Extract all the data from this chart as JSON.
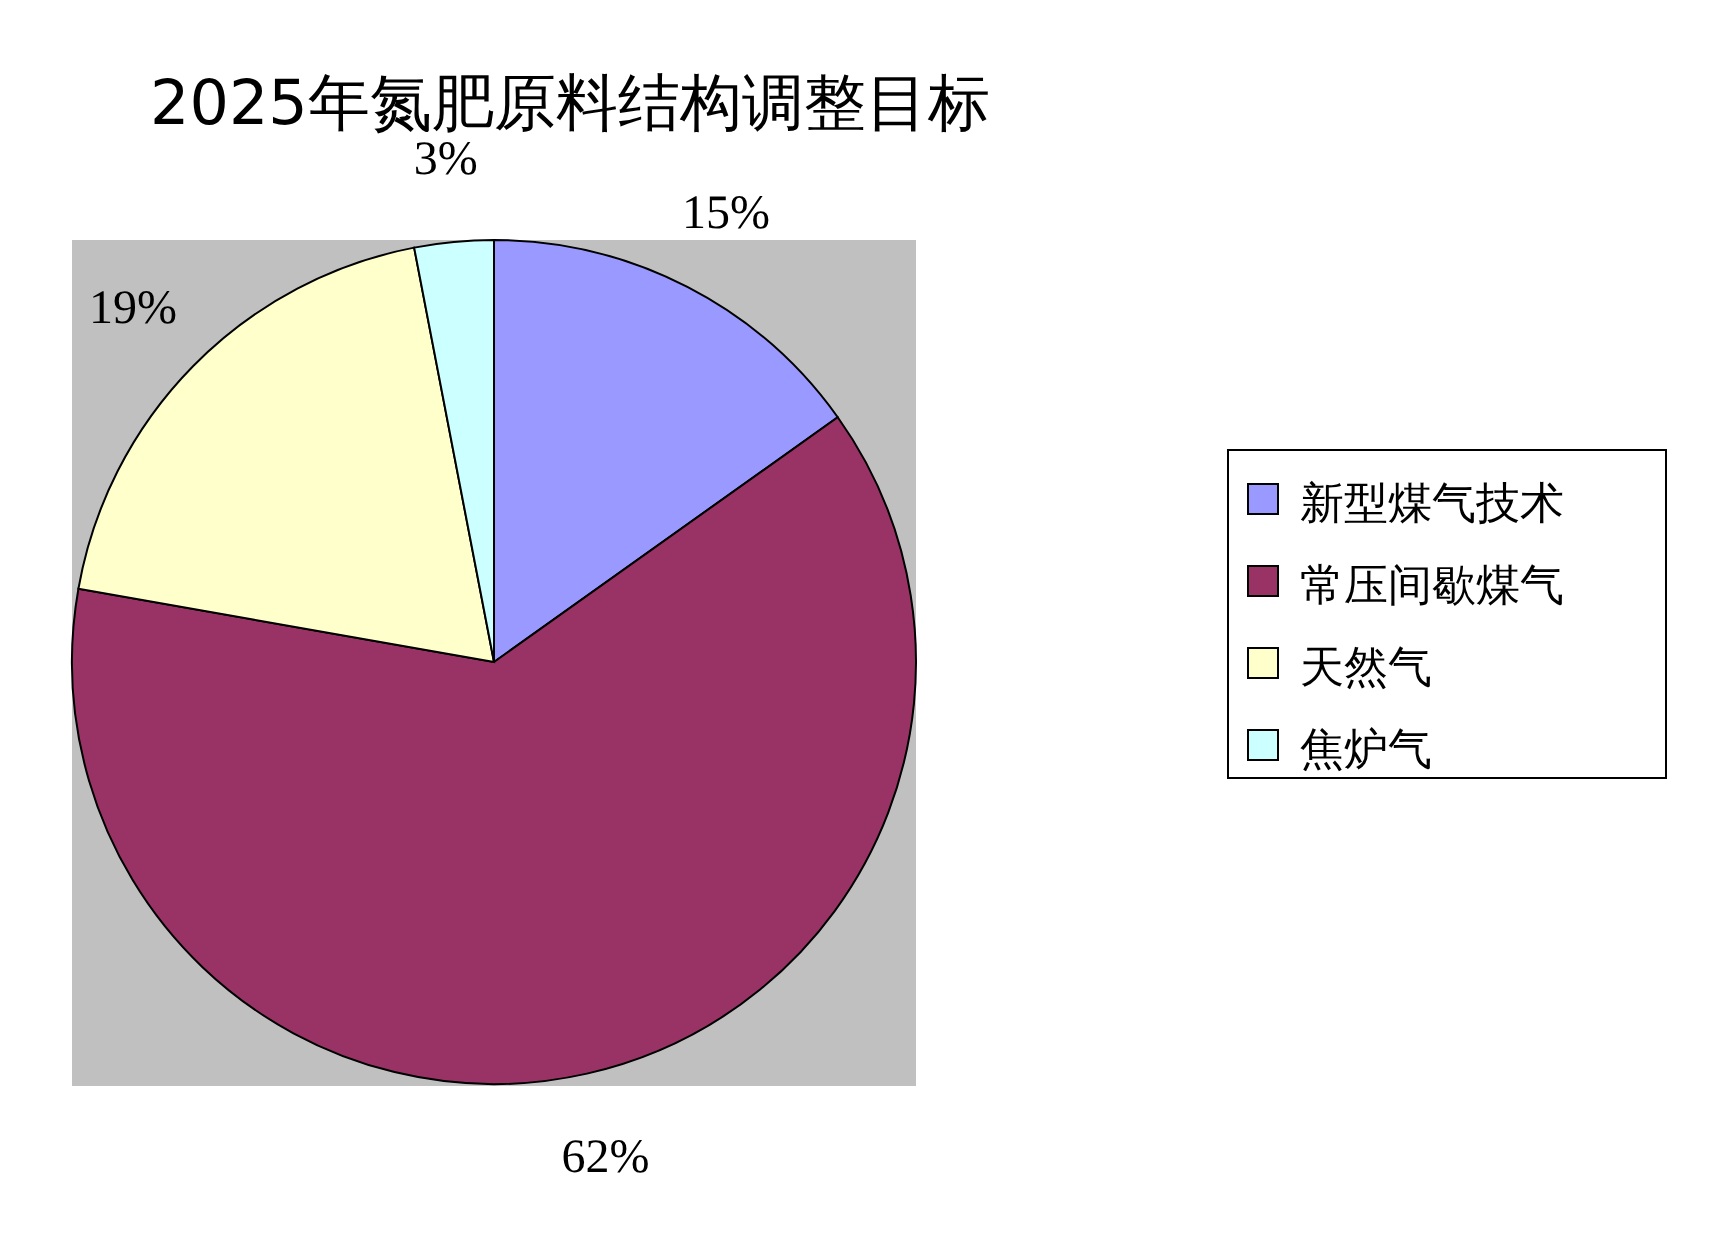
{
  "chart_data": {
    "type": "pie",
    "title": "2025年氮肥原料结构调整目标",
    "categories": [
      "新型煤气技术",
      "常压间歇煤气",
      "天然气",
      "焦炉气"
    ],
    "values": [
      15,
      62,
      19,
      3
    ],
    "colors": [
      "#9999ff",
      "#993366",
      "#ffffcc",
      "#ccffff"
    ],
    "value_labels": [
      "15%",
      "62%",
      "19%",
      "3%"
    ],
    "legend": "right"
  }
}
